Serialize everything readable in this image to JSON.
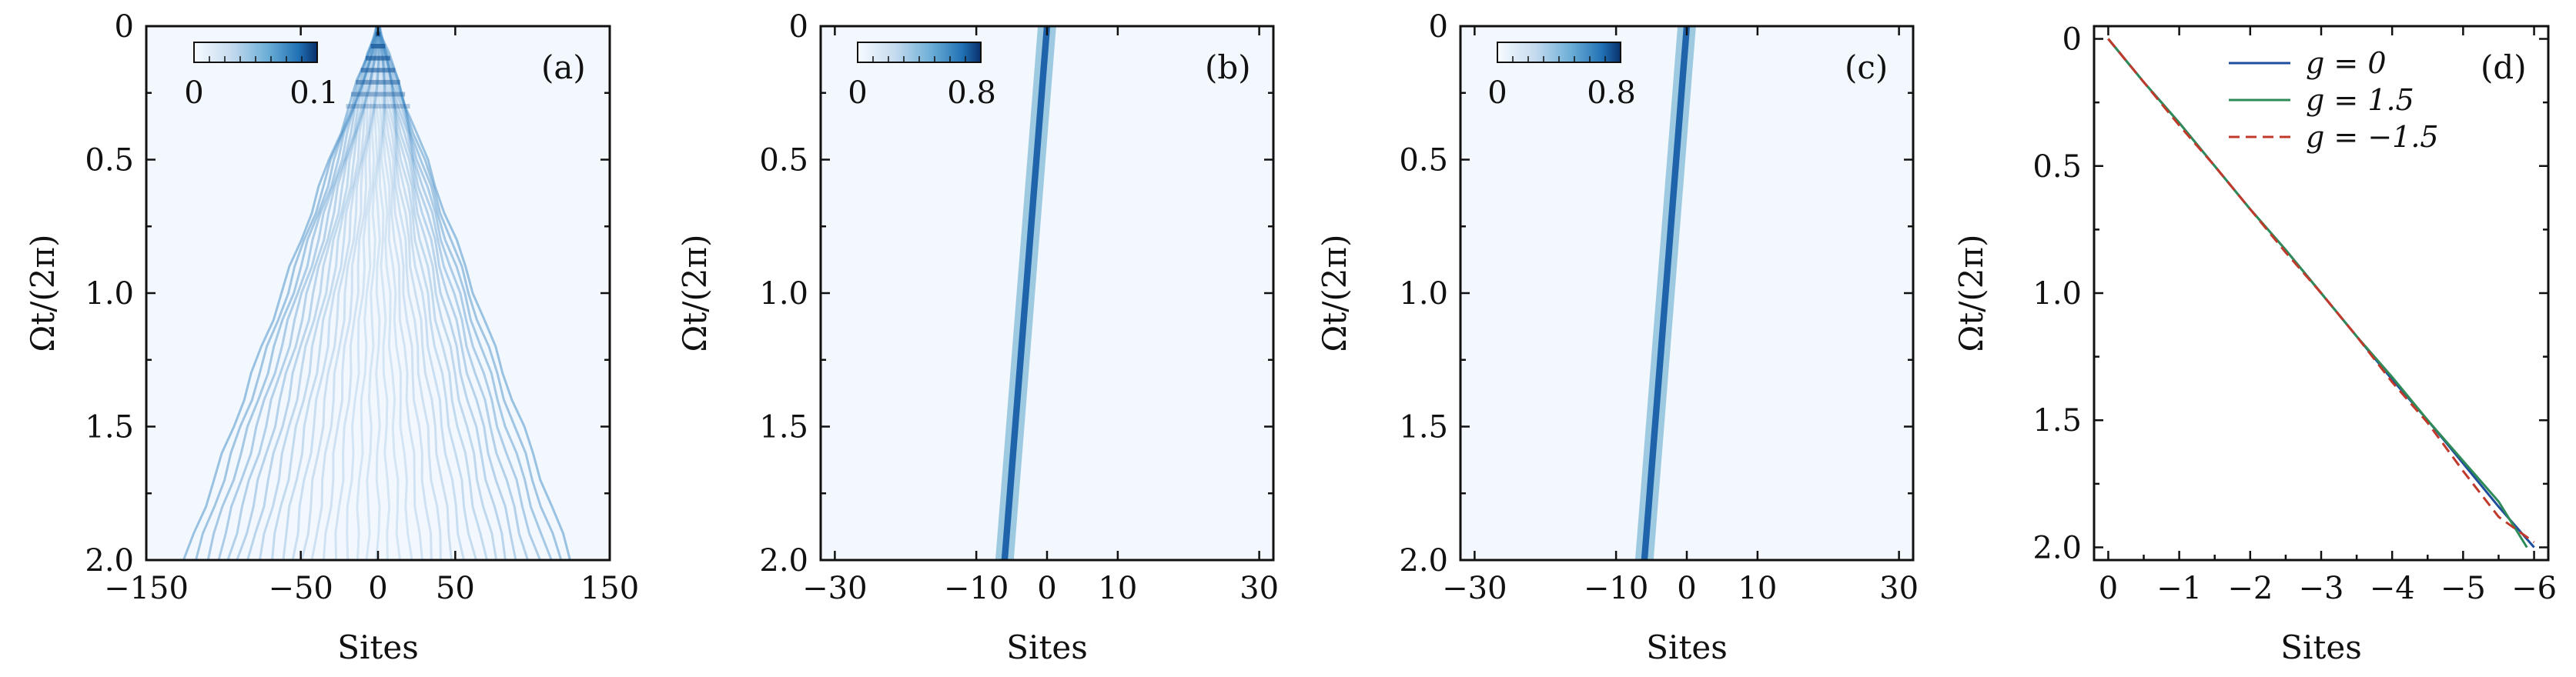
{
  "figure": {
    "background": "#ffffff",
    "heatmap_base": "#f3f8fe",
    "colormap": [
      "#f7fbff",
      "#c6dbef",
      "#6baed6",
      "#2171b5",
      "#08306b"
    ]
  },
  "chart_data": [
    {
      "type": "heatmap",
      "panel_label": "(a)",
      "description_of_content": "light-cone spreading from site 0",
      "xlabel": "Sites",
      "ylabel": "Ωt/(2π)",
      "xlim": [
        -150,
        150
      ],
      "ylim": [
        0,
        2.0
      ],
      "y_inverted": true,
      "xticks": [
        -150,
        -50,
        0,
        50,
        150
      ],
      "xtick_labels": [
        "−150",
        "−50",
        "0",
        "50",
        "150"
      ],
      "yticks": [
        0,
        0.5,
        1.0,
        1.5,
        2.0
      ],
      "ytick_labels": [
        "0",
        "0.5",
        "1.0",
        "1.5",
        "2.0"
      ],
      "colorbar": {
        "min": 0,
        "max": 0.1,
        "min_label": "0",
        "max_label": "0.1"
      },
      "cone_edge_at_t2": [
        -125,
        125
      ]
    },
    {
      "type": "heatmap",
      "panel_label": "(b)",
      "xlabel": "Sites",
      "ylabel": "Ωt/(2π)",
      "xlim": [
        -32,
        32
      ],
      "ylim": [
        0,
        2.0
      ],
      "y_inverted": true,
      "xticks": [
        -30,
        -10,
        0,
        10,
        30
      ],
      "xtick_labels": [
        "−30",
        "−10",
        "0",
        "10",
        "30"
      ],
      "yticks": [
        0,
        0.5,
        1.0,
        1.5,
        2.0
      ],
      "ytick_labels": [
        "0",
        "0.5",
        "1.0",
        "1.5",
        "2.0"
      ],
      "colorbar": {
        "min": 0,
        "max": 0.8,
        "min_label": "0",
        "max_label": "0.8"
      },
      "track": {
        "site_at_t0": 0,
        "site_at_t2": -6
      }
    },
    {
      "type": "heatmap",
      "panel_label": "(c)",
      "xlabel": "Sites",
      "ylabel": "Ωt/(2π)",
      "xlim": [
        -32,
        32
      ],
      "ylim": [
        0,
        2.0
      ],
      "y_inverted": true,
      "xticks": [
        -30,
        -10,
        0,
        10,
        30
      ],
      "xtick_labels": [
        "−30",
        "−10",
        "0",
        "10",
        "30"
      ],
      "yticks": [
        0,
        0.5,
        1.0,
        1.5,
        2.0
      ],
      "ytick_labels": [
        "0",
        "0.5",
        "1.0",
        "1.5",
        "2.0"
      ],
      "colorbar": {
        "min": 0,
        "max": 0.8,
        "min_label": "0",
        "max_label": "0.8"
      },
      "track": {
        "site_at_t0": 0,
        "site_at_t2": -6
      }
    },
    {
      "type": "line",
      "panel_label": "(d)",
      "xlabel": "Sites",
      "ylabel": "Ωt/(2π)",
      "xlim": [
        0.2,
        -6.2
      ],
      "ylim": [
        -0.05,
        2.05
      ],
      "y_inverted": true,
      "xticks": [
        0,
        -1,
        -2,
        -3,
        -4,
        -5,
        -6
      ],
      "xtick_labels": [
        "0",
        "−1",
        "−2",
        "−3",
        "−4",
        "−5",
        "−6"
      ],
      "yticks": [
        0,
        0.5,
        1.0,
        1.5,
        2.0
      ],
      "ytick_labels": [
        "0",
        "0.5",
        "1.0",
        "1.5",
        "2.0"
      ],
      "legend_position": "top-center",
      "series": [
        {
          "name": "g = 0",
          "color": "#1f4e9c",
          "dash": "solid",
          "x": [
            0,
            -0.5,
            -1,
            -1.5,
            -2,
            -2.5,
            -3,
            -3.5,
            -4,
            -4.5,
            -5,
            -5.5,
            -6
          ],
          "y": [
            0,
            0.17,
            0.33,
            0.5,
            0.67,
            0.83,
            1.0,
            1.17,
            1.34,
            1.5,
            1.67,
            1.84,
            2.0
          ]
        },
        {
          "name": "g = 1.5",
          "color": "#2e8b57",
          "dash": "solid",
          "x": [
            0,
            -0.5,
            -1,
            -1.5,
            -2,
            -2.5,
            -3,
            -3.5,
            -4,
            -4.5,
            -5,
            -5.5,
            -5.9
          ],
          "y": [
            0,
            0.17,
            0.33,
            0.5,
            0.67,
            0.83,
            1.0,
            1.17,
            1.33,
            1.5,
            1.66,
            1.82,
            2.0
          ]
        },
        {
          "name": "g = −1.5",
          "color": "#c0392b",
          "dash": "dashed",
          "x": [
            0,
            -0.5,
            -1,
            -1.5,
            -2,
            -2.5,
            -3,
            -3.5,
            -4,
            -4.5,
            -5,
            -5.5,
            -6
          ],
          "y": [
            0,
            0.17,
            0.34,
            0.5,
            0.67,
            0.84,
            1.0,
            1.17,
            1.35,
            1.51,
            1.7,
            1.88,
            1.98
          ]
        }
      ]
    }
  ]
}
